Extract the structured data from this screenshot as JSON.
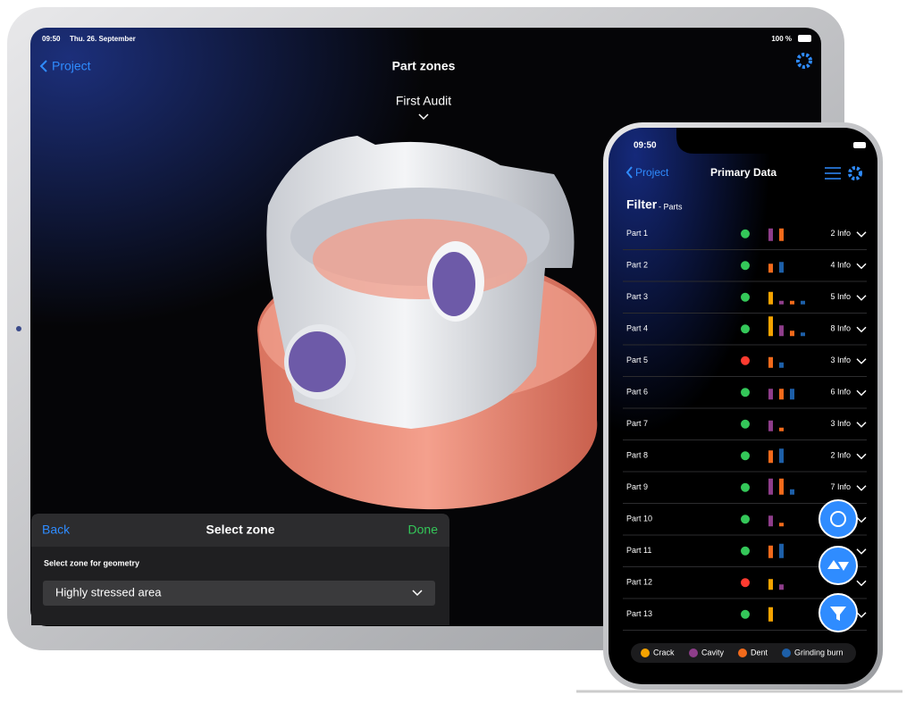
{
  "tablet": {
    "status_time": "09:50",
    "status_date": "Thu. 26. September",
    "battery": "100 %",
    "back": "Project",
    "title": "Part zones",
    "audit": "First Audit",
    "sheet": {
      "back": "Back",
      "title": "Select zone",
      "done": "Done",
      "label": "Select zone for geometry",
      "selected": "Highly stressed area"
    }
  },
  "phone": {
    "status_time": "09:50",
    "back": "Project",
    "title": "Primary Data",
    "filter": "Filter",
    "filter_sub": "- Parts",
    "legend": [
      {
        "name": "Crack",
        "color": "#f5a300"
      },
      {
        "name": "Cavity",
        "color": "#8e3d8a"
      },
      {
        "name": "Dent",
        "color": "#f26a1b"
      },
      {
        "name": "Grinding burn",
        "color": "#1d5fa8"
      }
    ],
    "parts": [
      {
        "name": "Part 1",
        "status": "#34c759",
        "info": "2 Info",
        "values": [
          null,
          3.5,
          3.5,
          null
        ]
      },
      {
        "name": "Part 2",
        "status": "#34c759",
        "info": "4 Info",
        "values": [
          null,
          null,
          2.5,
          3
        ]
      },
      {
        "name": "Part 3",
        "status": "#34c759",
        "info": "5 Info",
        "values": [
          3.5,
          1,
          1,
          1
        ]
      },
      {
        "name": "Part 4",
        "status": "#34c759",
        "info": "8 Info",
        "values": [
          5.5,
          3,
          1.5,
          1
        ]
      },
      {
        "name": "Part 5",
        "status": "#ff3b30",
        "info": "3 Info",
        "values": [
          null,
          null,
          3,
          1.5
        ]
      },
      {
        "name": "Part 6",
        "status": "#34c759",
        "info": "6 Info",
        "values": [
          null,
          3,
          3,
          3
        ]
      },
      {
        "name": "Part 7",
        "status": "#34c759",
        "info": "3 Info",
        "values": [
          null,
          3,
          1,
          null
        ]
      },
      {
        "name": "Part 8",
        "status": "#34c759",
        "info": "2 Info",
        "values": [
          null,
          null,
          3.5,
          4
        ]
      },
      {
        "name": "Part 9",
        "status": "#34c759",
        "info": "7 Info",
        "values": [
          null,
          4.5,
          4.5,
          1.5
        ]
      },
      {
        "name": "Part 10",
        "status": "#34c759",
        "values": [
          null,
          3,
          1,
          null
        ]
      },
      {
        "name": "Part 11",
        "status": "#34c759",
        "values": [
          null,
          null,
          3.5,
          4
        ]
      },
      {
        "name": "Part 12",
        "status": "#ff3b30",
        "values": [
          3,
          1.5,
          null,
          null
        ]
      },
      {
        "name": "Part 13",
        "status": "#34c759",
        "values": [
          4,
          null,
          null,
          null
        ]
      }
    ]
  }
}
